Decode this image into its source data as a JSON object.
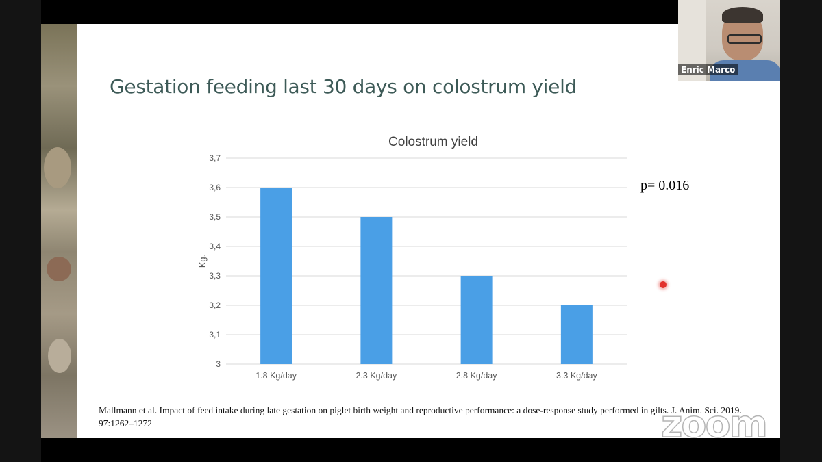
{
  "slide": {
    "title": "Gestation feeding last 30 days on colostrum yield",
    "p_value": "p= 0.016",
    "reference": "Mallmann et al. Impact of feed intake during late gestation on piglet birth weight and reproductive performance: a dose-response study performed in gilts. J. Anim. Sci. 2019. 97:1262–1272"
  },
  "chart_data": {
    "type": "bar",
    "title": "Colostrum yield",
    "ylabel": "Kg.",
    "xlabel": "",
    "categories": [
      "1.8 Kg/day",
      "2.3 Kg/day",
      "2.8 Kg/day",
      "3.3 Kg/day"
    ],
    "values": [
      3.6,
      3.5,
      3.3,
      3.2
    ],
    "ylim": [
      3,
      3.7
    ],
    "yticks": [
      "3",
      "3,1",
      "3,2",
      "3,3",
      "3,4",
      "3,5",
      "3,6",
      "3,7"
    ],
    "grid": true,
    "bar_color": "#4a9fe6"
  },
  "video": {
    "participant_name": "Enric Marco"
  },
  "watermark": "zoom",
  "colors": {
    "title": "#3d5a57",
    "bar": "#4a9fe6",
    "pointer": "#e2322d"
  }
}
